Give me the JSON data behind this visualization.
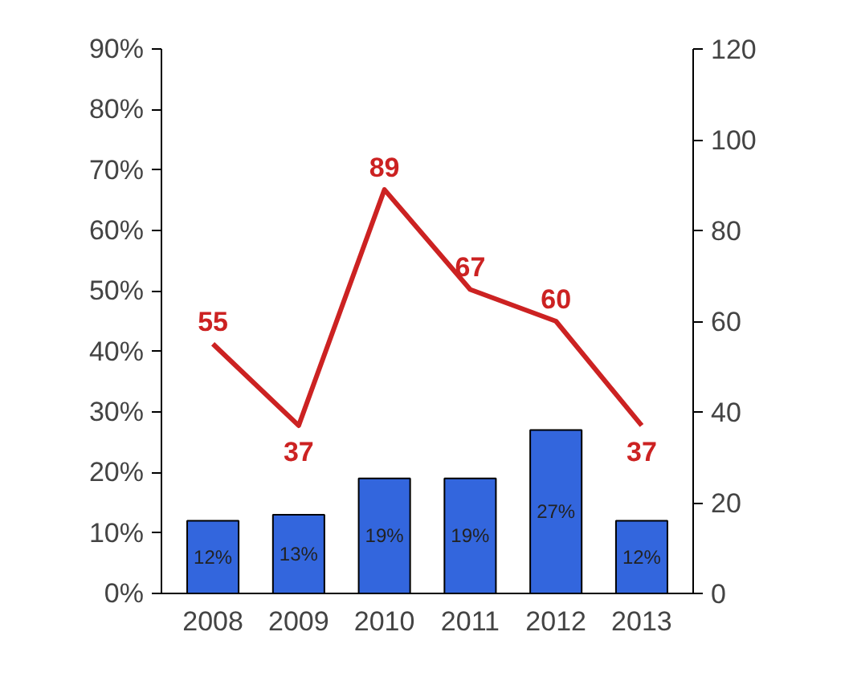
{
  "chart_data": {
    "type": "bar",
    "categories": [
      "2008",
      "2009",
      "2010",
      "2011",
      "2012",
      "2013"
    ],
    "series": [
      {
        "color": "#3366dd",
        "values": [
          12,
          13,
          19,
          19,
          27,
          12
        ],
        "value_labels": [
          "12%",
          "13%",
          "19%",
          "19%",
          "27%",
          "12%"
        ]
      },
      {
        "type": "line",
        "axis": "y2",
        "color": "#cc2222",
        "values": [
          55,
          37,
          89,
          67,
          60,
          37
        ],
        "value_labels": [
          "55",
          "37",
          "89",
          "67",
          "60",
          "37"
        ]
      }
    ],
    "ylim": [
      0,
      90
    ],
    "yticks": [
      {
        "value": 0,
        "label": "0%"
      },
      {
        "value": 10,
        "label": "10%"
      },
      {
        "value": 20,
        "label": "20%"
      },
      {
        "value": 30,
        "label": "30%"
      },
      {
        "value": 40,
        "label": "40%"
      },
      {
        "value": 50,
        "label": "50%"
      },
      {
        "value": 60,
        "label": "60%"
      },
      {
        "value": 70,
        "label": "70%"
      },
      {
        "value": 80,
        "label": "80%"
      },
      {
        "value": 90,
        "label": "90%"
      }
    ],
    "y2lim": [
      0,
      120
    ],
    "y2ticks": [
      0,
      20,
      40,
      60,
      80,
      100,
      120
    ],
    "grid": false,
    "marker": "none",
    "line_style": "solid"
  }
}
